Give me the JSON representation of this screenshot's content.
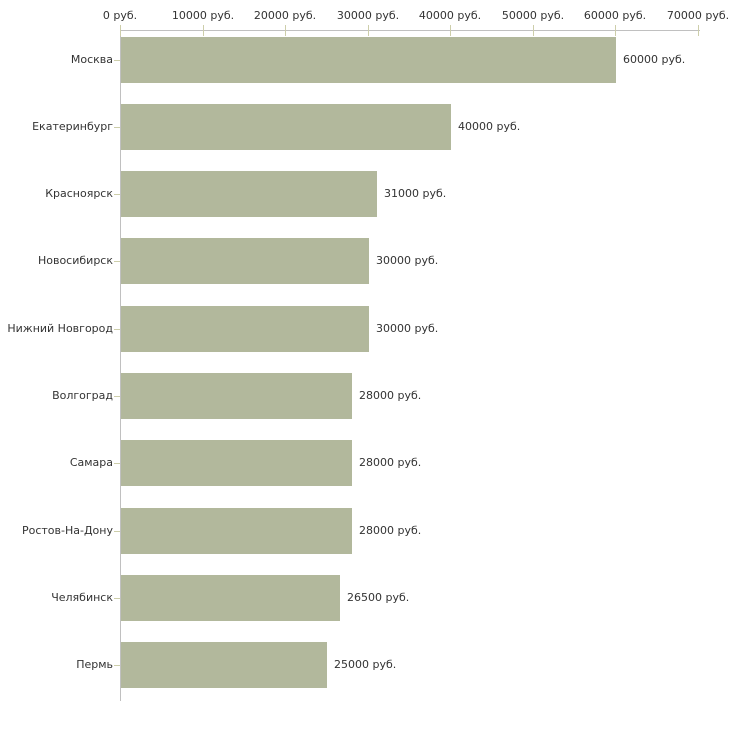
{
  "chart_data": {
    "type": "bar",
    "orientation": "horizontal",
    "title": "",
    "xlabel": "",
    "ylabel": "",
    "categories": [
      "Москва",
      "Екатеринбург",
      "Красноярск",
      "Новосибирск",
      "Нижний Новгород",
      "Волгоград",
      "Самара",
      "Ростов-На-Дону",
      "Челябинск",
      "Пермь"
    ],
    "values": [
      60000,
      40000,
      31000,
      30000,
      30000,
      28000,
      28000,
      28000,
      26500,
      25000
    ],
    "bar_labels": [
      "60000 руб.",
      "40000 руб.",
      "31000 руб.",
      "30000 руб.",
      "30000 руб.",
      "28000 руб.",
      "28000 руб.",
      "28000 руб.",
      "26500 руб.",
      "25000 руб."
    ],
    "x_ticks": [
      0,
      10000,
      20000,
      30000,
      40000,
      50000,
      60000,
      70000
    ],
    "x_tick_labels": [
      "0 руб.",
      "10000 руб.",
      "20000 руб.",
      "30000 руб.",
      "40000 руб.",
      "50000 руб.",
      "60000 руб.",
      "70000 руб."
    ],
    "xlim": [
      0,
      70000
    ],
    "grid": false,
    "legend_position": "none",
    "colors": {
      "bar": "#b2b89c",
      "axis": "#c0c0c0",
      "tick": "#cdceaa",
      "text": "#333333",
      "background": "#ffffff"
    }
  }
}
